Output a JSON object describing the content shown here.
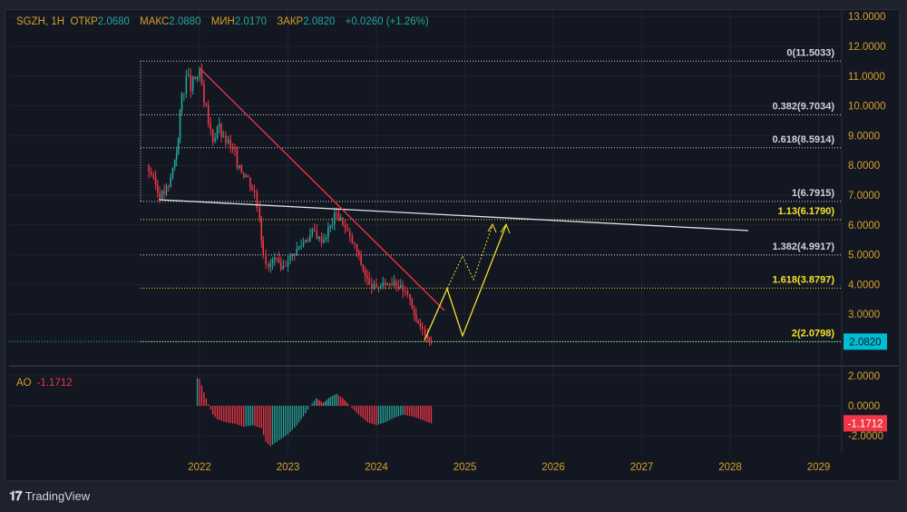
{
  "header": {
    "symbol": "SGZH, 1H",
    "open_label": "ОТКР",
    "open": "2.0680",
    "high_label": "МАКС",
    "high": "2.0880",
    "low_label": "МИН",
    "low": "2.0170",
    "close_label": "ЗАКР",
    "close": "2.0820",
    "change": "+0.0260 (+1.26%)"
  },
  "indicator": {
    "name": "AO",
    "value": "-1.1712"
  },
  "brand": "TradingView",
  "colors": {
    "up": "#26a69a",
    "down": "#f23645",
    "axis": "#d4a02a",
    "fib_white": "#d1d4dc",
    "fib_yellow": "#f5e12a",
    "trend": "#f23645",
    "price": "#00bcd4"
  },
  "chart_data": {
    "type": "candlestick",
    "price_axis": {
      "ticks": [
        "13.0000",
        "12.0000",
        "11.0000",
        "10.0000",
        "9.0000",
        "8.0000",
        "7.0000",
        "6.0000",
        "5.0000",
        "4.0000",
        "3.0000"
      ],
      "ylim": [
        1.3,
        13.2
      ]
    },
    "time_axis": {
      "ticks": [
        "2022",
        "2023",
        "2024",
        "2025",
        "2026",
        "2027",
        "2028",
        "2029"
      ]
    },
    "last_price": "2.0820",
    "closes": [
      [
        2021.4,
        8.0
      ],
      [
        2021.48,
        7.6
      ],
      [
        2021.55,
        6.9
      ],
      [
        2021.65,
        7.3
      ],
      [
        2021.72,
        8.2
      ],
      [
        2021.76,
        8.9
      ],
      [
        2021.8,
        10.4
      ],
      [
        2021.85,
        11.0
      ],
      [
        2021.9,
        10.5
      ],
      [
        2021.95,
        10.9
      ],
      [
        2022.0,
        11.2
      ],
      [
        2022.05,
        10.1
      ],
      [
        2022.1,
        9.4
      ],
      [
        2022.15,
        8.8
      ],
      [
        2022.2,
        9.3
      ],
      [
        2022.27,
        9.0
      ],
      [
        2022.35,
        8.6
      ],
      [
        2022.45,
        8.0
      ],
      [
        2022.55,
        7.6
      ],
      [
        2022.62,
        7.1
      ],
      [
        2022.68,
        6.2
      ],
      [
        2022.72,
        5.0
      ],
      [
        2022.78,
        4.6
      ],
      [
        2022.85,
        4.9
      ],
      [
        2022.92,
        4.5
      ],
      [
        2023.0,
        4.8
      ],
      [
        2023.1,
        5.2
      ],
      [
        2023.2,
        5.5
      ],
      [
        2023.3,
        5.8
      ],
      [
        2023.38,
        5.4
      ],
      [
        2023.48,
        6.0
      ],
      [
        2023.55,
        6.4
      ],
      [
        2023.62,
        6.0
      ],
      [
        2023.7,
        5.6
      ],
      [
        2023.78,
        5.1
      ],
      [
        2023.85,
        4.5
      ],
      [
        2023.92,
        4.0
      ],
      [
        2024.0,
        3.9
      ],
      [
        2024.1,
        4.0
      ],
      [
        2024.2,
        4.1
      ],
      [
        2024.3,
        3.8
      ],
      [
        2024.38,
        3.5
      ],
      [
        2024.45,
        2.8
      ],
      [
        2024.52,
        2.5
      ],
      [
        2024.58,
        2.2
      ],
      [
        2024.62,
        2.08
      ]
    ],
    "fib_levels": [
      {
        "label": "0(11.5033)",
        "value": 11.5033,
        "color": "white"
      },
      {
        "label": "0.382(9.7034)",
        "value": 9.7034,
        "color": "white"
      },
      {
        "label": "0.618(8.5914)",
        "value": 8.5914,
        "color": "white"
      },
      {
        "label": "1(6.7915)",
        "value": 6.7915,
        "color": "white"
      },
      {
        "label": "1.13(6.1790)",
        "value": 6.179,
        "color": "yellow"
      },
      {
        "label": "1.382(4.9917)",
        "value": 4.9917,
        "color": "white"
      },
      {
        "label": "1.618(3.8797)",
        "value": 3.8797,
        "color": "yellow"
      },
      {
        "label": "2(2.0798)",
        "value": 2.0798,
        "color": "yellow"
      }
    ],
    "ao": {
      "ticks": [
        "2.0000",
        "0.0000",
        "-2.0000"
      ],
      "ylim": [
        -3,
        2.6
      ],
      "values": [
        [
          2021.95,
          1.9
        ],
        [
          2022.0,
          1.8
        ],
        [
          2022.05,
          0.9
        ],
        [
          2022.1,
          0.1
        ],
        [
          2022.15,
          -0.6
        ],
        [
          2022.2,
          -0.9
        ],
        [
          2022.3,
          -1.1
        ],
        [
          2022.4,
          -1.2
        ],
        [
          2022.5,
          -1.4
        ],
        [
          2022.6,
          -1.3
        ],
        [
          2022.7,
          -1.5
        ],
        [
          2022.75,
          -2.4
        ],
        [
          2022.8,
          -2.7
        ],
        [
          2022.9,
          -2.3
        ],
        [
          2023.0,
          -1.9
        ],
        [
          2023.1,
          -1.3
        ],
        [
          2023.2,
          -0.5
        ],
        [
          2023.25,
          0.0
        ],
        [
          2023.32,
          0.5
        ],
        [
          2023.4,
          0.2
        ],
        [
          2023.48,
          0.6
        ],
        [
          2023.55,
          0.8
        ],
        [
          2023.62,
          0.5
        ],
        [
          2023.7,
          0.0
        ],
        [
          2023.8,
          -0.6
        ],
        [
          2023.9,
          -1.1
        ],
        [
          2024.0,
          -1.3
        ],
        [
          2024.1,
          -1.1
        ],
        [
          2024.2,
          -0.8
        ],
        [
          2024.3,
          -0.6
        ],
        [
          2024.4,
          -0.7
        ],
        [
          2024.5,
          -0.9
        ],
        [
          2024.62,
          -1.17
        ]
      ]
    }
  }
}
